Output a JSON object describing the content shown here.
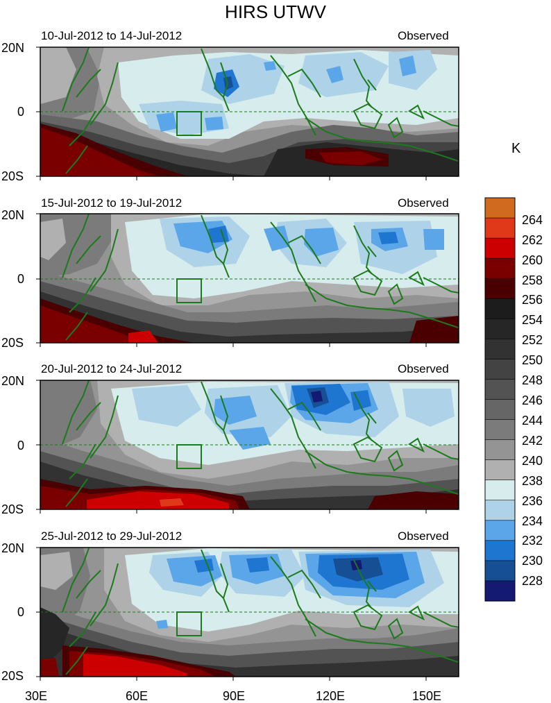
{
  "figure": {
    "title": "HIRS UTWV",
    "units": "K"
  },
  "panels": [
    {
      "period": "10-Jul-2012 to 14-Jul-2012",
      "kind": "Observed"
    },
    {
      "period": "15-Jul-2012 to 19-Jul-2012",
      "kind": "Observed"
    },
    {
      "period": "20-Jul-2012 to 24-Jul-2012",
      "kind": "Observed"
    },
    {
      "period": "25-Jul-2012 to 29-Jul-2012",
      "kind": "Observed"
    }
  ],
  "axes": {
    "lat_ticks": [
      "20N",
      "0",
      "20S"
    ],
    "lon_ticks": [
      "30E",
      "60E",
      "90E",
      "120E",
      "150E"
    ]
  },
  "colorbar": {
    "levels": [
      "264",
      "262",
      "260",
      "258",
      "256",
      "254",
      "252",
      "250",
      "248",
      "246",
      "244",
      "242",
      "240",
      "238",
      "236",
      "234",
      "232",
      "230",
      "228"
    ],
    "colors": [
      "#cf6a1f",
      "#e0391a",
      "#cc0000",
      "#7a0000",
      "#4a0000",
      "#1c1c1c",
      "#262626",
      "#323232",
      "#434343",
      "#535353",
      "#666666",
      "#7b7b7b",
      "#949494",
      "#b0b0b0",
      "#d7ecec",
      "#aed3e8",
      "#5aa6e8",
      "#1f76d0",
      "#174f94",
      "#141a72"
    ]
  }
}
